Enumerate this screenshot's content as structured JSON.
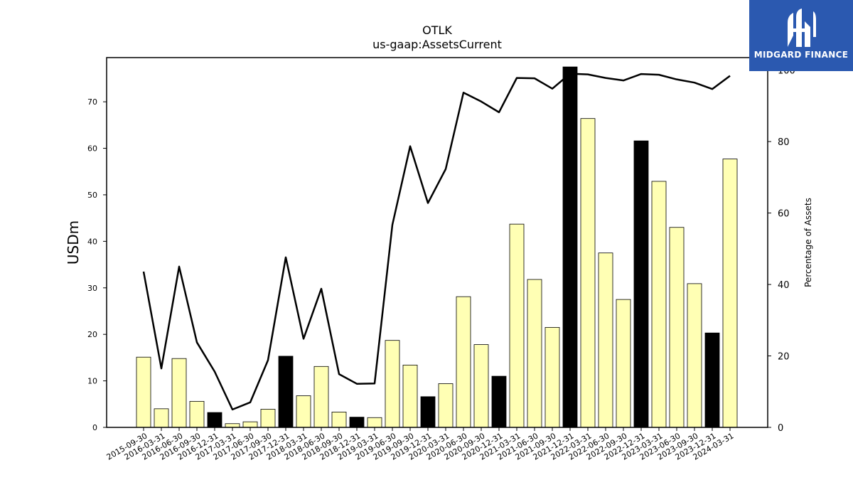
{
  "chart_data": {
    "type": "bar",
    "title": "OTLK",
    "subtitle": "us-gaap:AssetsCurrent",
    "ylabel": "USDm",
    "y2label": "Percentage of Assets",
    "ylim": [
      0,
      79.5
    ],
    "y2lim": [
      0,
      103.5
    ],
    "yticks": [
      0,
      10,
      20,
      30,
      40,
      50,
      60,
      70
    ],
    "y2ticks": [
      0,
      20,
      40,
      60,
      80,
      100
    ],
    "categories": [
      "2015-09-30",
      "2016-03-31",
      "2016-06-30",
      "2016-09-30",
      "2016-12-31",
      "2017-03-31",
      "2017-06-30",
      "2017-09-30",
      "2017-12-31",
      "2018-03-31",
      "2018-06-30",
      "2018-09-30",
      "2018-12-31",
      "2019-03-31",
      "2019-06-30",
      "2019-09-30",
      "2019-12-31",
      "2020-03-31",
      "2020-06-30",
      "2020-09-30",
      "2020-12-31",
      "2021-03-31",
      "2021-06-30",
      "2021-09-30",
      "2021-12-31",
      "2022-03-31",
      "2022-06-30",
      "2022-09-30",
      "2022-12-31",
      "2023-03-31",
      "2023-06-30",
      "2023-09-30",
      "2023-12-31",
      "2024-03-31"
    ],
    "series": [
      {
        "kind": "bar",
        "values": [
          15.1,
          4.0,
          14.8,
          5.6,
          3.2,
          0.8,
          1.2,
          3.9,
          15.3,
          6.8,
          13.1,
          3.3,
          2.2,
          2.1,
          18.7,
          13.4,
          6.6,
          9.4,
          28.1,
          17.8,
          11.0,
          43.7,
          31.8,
          21.5,
          77.5,
          66.4,
          37.5,
          27.5,
          61.6,
          52.9,
          43.0,
          30.9,
          20.3,
          57.7
        ],
        "highlight": [
          false,
          false,
          false,
          false,
          true,
          false,
          false,
          false,
          true,
          false,
          false,
          false,
          true,
          false,
          false,
          false,
          true,
          false,
          false,
          false,
          true,
          false,
          false,
          false,
          true,
          false,
          false,
          false,
          true,
          false,
          false,
          false,
          true,
          false
        ]
      },
      {
        "kind": "line",
        "axis": "right",
        "values": [
          43.6,
          16.5,
          45.0,
          23.8,
          15.6,
          5.0,
          7.0,
          18.8,
          47.6,
          24.8,
          38.8,
          14.9,
          12.2,
          12.3,
          56.7,
          78.7,
          62.8,
          72.3,
          93.7,
          91.2,
          88.2,
          97.8,
          97.7,
          94.8,
          99.0,
          98.8,
          97.8,
          97.1,
          98.9,
          98.7,
          97.4,
          96.5,
          94.7,
          98.4
        ]
      }
    ],
    "colors": {
      "bar": "#ffffb4",
      "bar_highlight": "#000000",
      "line": "#000000"
    }
  },
  "logo": {
    "text": "MIDGARD FINANCE",
    "icon": "midgard-logo-icon"
  }
}
